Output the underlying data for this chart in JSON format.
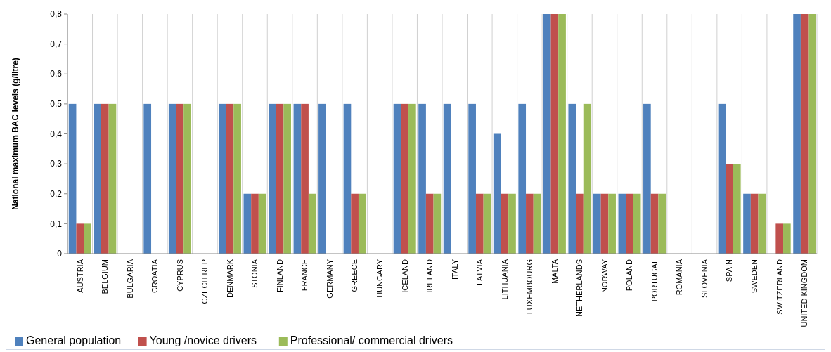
{
  "chart_data": {
    "type": "bar",
    "ylabel": "National maximum BAC levels (g/litre)",
    "categories": [
      "AUSTRIA",
      "BELGIUM",
      "BULGARIA",
      "CROATIA",
      "CYPRUS",
      "CZECH REP",
      "DENMARK",
      "ESTONIA",
      "FINLAND",
      "FRANCE",
      "GERMANY",
      "GREECE",
      "HUNGARY",
      "ICELAND",
      "IRELAND",
      "ITALY",
      "LATVIA",
      "LITHUANIA",
      "LUXEMBOURG",
      "MALTA",
      "NETHERLANDS",
      "NORWAY",
      "POLAND",
      "PORTUGAL",
      "ROMANIA",
      "SLOVENIA",
      "SPAIN",
      "SWEDEN",
      "SWITZERLAND",
      "UNITED KINGDOM"
    ],
    "series": [
      {
        "name": "General population",
        "color": "#4f81bd",
        "values": [
          0.5,
          0.5,
          0,
          0.5,
          0.5,
          0,
          0.5,
          0.2,
          0.5,
          0.5,
          0.5,
          0.5,
          0,
          0.5,
          0.5,
          0.5,
          0.5,
          0.4,
          0.5,
          0.8,
          0.5,
          0.2,
          0.2,
          0.5,
          0,
          0,
          0.5,
          0.2,
          0,
          0.8
        ]
      },
      {
        "name": "Young /novice drivers",
        "color": "#c0504d",
        "values": [
          0.1,
          0.5,
          0,
          0,
          0.5,
          0,
          0.5,
          0.2,
          0.5,
          0.5,
          0,
          0.2,
          0,
          0.5,
          0.2,
          0,
          0.2,
          0.2,
          0.2,
          0.8,
          0.2,
          0.2,
          0.2,
          0.2,
          0,
          0,
          0.3,
          0.2,
          0.1,
          0.8
        ]
      },
      {
        "name": "Professional/ commercial drivers",
        "color": "#9bbb59",
        "values": [
          0.1,
          0.5,
          0,
          0,
          0.5,
          0,
          0.5,
          0.2,
          0.5,
          0.2,
          0,
          0.2,
          0,
          0.5,
          0.2,
          0,
          0.2,
          0.2,
          0.2,
          0.8,
          0.5,
          0.2,
          0.2,
          0.2,
          0,
          0,
          0.3,
          0.2,
          0.1,
          0.8
        ]
      }
    ],
    "ylim": [
      0,
      0.8
    ],
    "yticks": [
      0,
      {
        "value": 0.1,
        "label": "0,1"
      },
      {
        "value": 0.2,
        "label": "0,2"
      },
      {
        "value": 0.3,
        "label": "0,3"
      },
      {
        "value": 0.4,
        "label": "0,4"
      },
      {
        "value": 0.5,
        "label": "0,5"
      },
      {
        "value": 0.6,
        "label": "0,6"
      },
      {
        "value": 0.7,
        "label": "0,7"
      },
      {
        "value": 0.8,
        "label": "0,8"
      }
    ],
    "grid": "x",
    "legend": "bottom"
  }
}
